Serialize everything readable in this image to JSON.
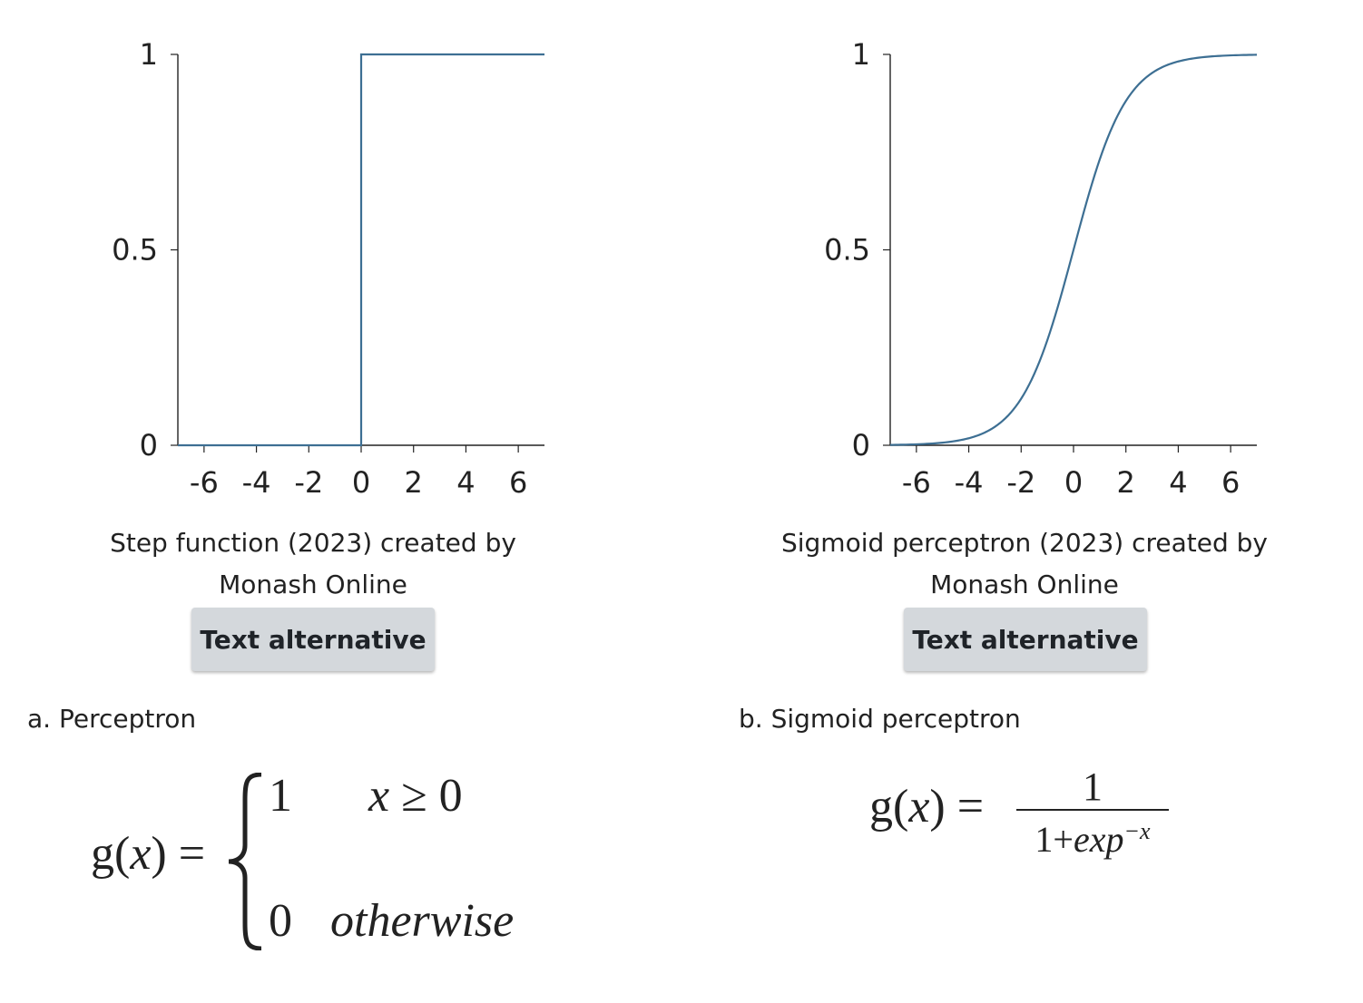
{
  "chart_data": [
    {
      "type": "line",
      "function": "step",
      "title": "",
      "xlabel": "",
      "ylabel": "",
      "xlim": [
        -7,
        7
      ],
      "ylim": [
        0,
        1
      ],
      "x_ticks": [
        -6,
        -4,
        -2,
        0,
        2,
        4,
        6
      ],
      "x_tick_labels": [
        "-6",
        "-4",
        "-2",
        "0",
        "2",
        "4",
        "6"
      ],
      "y_ticks": [
        0,
        0.5,
        1
      ],
      "y_tick_labels": [
        "0",
        "0.5",
        "1"
      ],
      "grid": false,
      "color": "#3d6f93",
      "series": [
        {
          "x": [
            -7,
            0,
            0,
            7
          ],
          "y": [
            0,
            0,
            1,
            1
          ]
        }
      ]
    },
    {
      "type": "line",
      "function": "sigmoid",
      "title": "",
      "xlabel": "",
      "ylabel": "",
      "xlim": [
        -7,
        7
      ],
      "ylim": [
        0,
        1
      ],
      "x_ticks": [
        -6,
        -4,
        -2,
        0,
        2,
        4,
        6
      ],
      "x_tick_labels": [
        "-6",
        "-4",
        "-2",
        "0",
        "2",
        "4",
        "6"
      ],
      "y_ticks": [
        0,
        0.5,
        1
      ],
      "y_tick_labels": [
        "0",
        "0.5",
        "1"
      ],
      "grid": false,
      "color": "#3d6f93",
      "series": [
        {
          "x": [
            -7,
            -6,
            -5,
            -4,
            -3,
            -2,
            -1,
            0,
            1,
            2,
            3,
            4,
            5,
            6,
            7
          ],
          "y": [
            0.0009,
            0.0025,
            0.0067,
            0.018,
            0.047,
            0.119,
            0.269,
            0.5,
            0.731,
            0.881,
            0.953,
            0.982,
            0.9933,
            0.9975,
            0.9991
          ]
        }
      ]
    }
  ],
  "figures": [
    {
      "caption_line1": "Step function (2023) created by",
      "caption_line2": "Monash Online",
      "button_label": "Text alternative",
      "section_label": "a. Perceptron"
    },
    {
      "caption_line1": "Sigmoid perceptron (2023) created by",
      "caption_line2": "Monash Online",
      "button_label": "Text alternative",
      "section_label": "b. Sigmoid perceptron"
    }
  ],
  "formulas": {
    "perceptron": {
      "lhs_fn": "g(",
      "lhs_var": "x",
      "lhs_close": ") =",
      "case1_value": "1",
      "case1_var": "x",
      "case1_rest": " ≥ 0",
      "case2_value": "0",
      "case2_cond": "otherwise"
    },
    "sigmoid": {
      "lhs_fn": "g(",
      "lhs_var": "x",
      "lhs_close": ") =",
      "numerator": "1",
      "den_one": "1+",
      "den_exp": "exp",
      "den_sup": "−x"
    }
  }
}
